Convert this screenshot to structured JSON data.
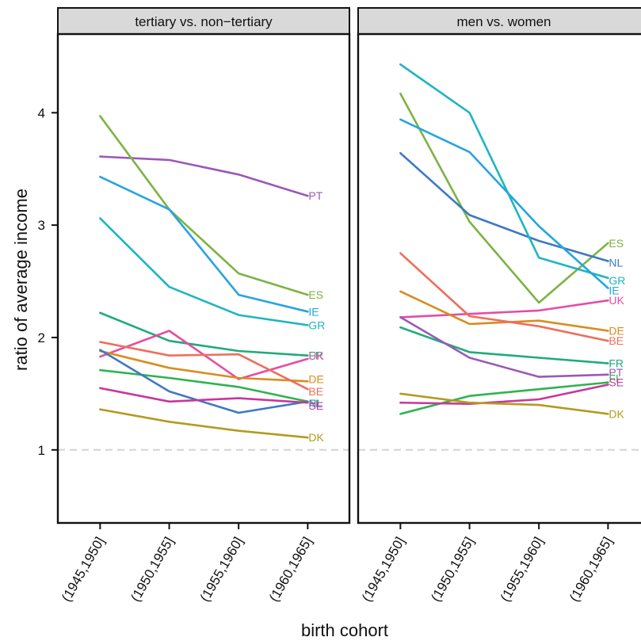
{
  "chart_data": {
    "type": "line",
    "xlabel": "birth cohort",
    "ylabel": "ratio of average income",
    "ylim": [
      0.35,
      4.7
    ],
    "yticks": [
      "1",
      "2",
      "3",
      "4"
    ],
    "reference_line": 1,
    "categories": [
      "(1945,1950]",
      "(1950,1955]",
      "(1955,1960]",
      "(1960,1965]"
    ],
    "colors": {
      "PT": "#9b59b6",
      "ES": "#7cb342",
      "IE": "#26a4e0",
      "GR": "#1fb5c0",
      "FR": "#1fab7a",
      "UK": "#e64ca4",
      "DE": "#d98c1f",
      "BE": "#ee6e5c",
      "FI": "#2fb34f",
      "NL": "#3f79c2",
      "SE": "#c8379c",
      "DK": "#b39b1d"
    },
    "panels": [
      {
        "title": "tertiary vs. non−tertiary",
        "series": [
          {
            "name": "PT",
            "values": [
              3.61,
              3.58,
              3.45,
              3.26
            ]
          },
          {
            "name": "ES",
            "values": [
              3.97,
              3.14,
              2.57,
              2.38
            ]
          },
          {
            "name": "IE",
            "values": [
              3.43,
              3.14,
              2.38,
              2.23
            ]
          },
          {
            "name": "GR",
            "values": [
              3.06,
              2.45,
              2.2,
              2.11
            ]
          },
          {
            "name": "FR",
            "values": [
              2.22,
              1.97,
              1.88,
              1.84
            ]
          },
          {
            "name": "UK",
            "values": [
              1.83,
              2.06,
              1.63,
              1.81
            ]
          },
          {
            "name": "DE",
            "values": [
              1.88,
              1.73,
              1.64,
              1.61
            ]
          },
          {
            "name": "BE",
            "values": [
              1.96,
              1.84,
              1.85,
              1.54
            ]
          },
          {
            "name": "FI",
            "values": [
              1.71,
              1.64,
              1.56,
              1.43
            ]
          },
          {
            "name": "NL",
            "values": [
              1.89,
              1.52,
              1.33,
              1.43
            ]
          },
          {
            "name": "SE",
            "values": [
              1.55,
              1.43,
              1.46,
              1.42
            ]
          },
          {
            "name": "DK",
            "values": [
              1.36,
              1.25,
              1.17,
              1.11
            ]
          }
        ]
      },
      {
        "title": "men vs. women",
        "series": [
          {
            "name": "ES",
            "values": [
              4.17,
              3.03,
              2.31,
              2.84
            ]
          },
          {
            "name": "NL",
            "values": [
              3.64,
              3.09,
              2.86,
              2.68
            ]
          },
          {
            "name": "GR",
            "values": [
              4.43,
              4.0,
              2.71,
              2.53
            ]
          },
          {
            "name": "IE",
            "values": [
              3.94,
              3.65,
              2.99,
              2.44
            ]
          },
          {
            "name": "UK",
            "values": [
              2.18,
              2.21,
              2.24,
              2.33
            ]
          },
          {
            "name": "DE",
            "values": [
              2.41,
              2.12,
              2.15,
              2.06
            ]
          },
          {
            "name": "BE",
            "values": [
              2.75,
              2.19,
              2.1,
              1.97
            ]
          },
          {
            "name": "FR",
            "values": [
              2.09,
              1.87,
              1.82,
              1.77
            ]
          },
          {
            "name": "PT",
            "values": [
              2.18,
              1.82,
              1.65,
              1.67
            ]
          },
          {
            "name": "FI",
            "values": [
              1.32,
              1.48,
              1.54,
              1.6
            ]
          },
          {
            "name": "SE",
            "values": [
              1.42,
              1.41,
              1.45,
              1.58
            ]
          },
          {
            "name": "DK",
            "values": [
              1.5,
              1.42,
              1.4,
              1.32
            ]
          }
        ]
      }
    ]
  }
}
